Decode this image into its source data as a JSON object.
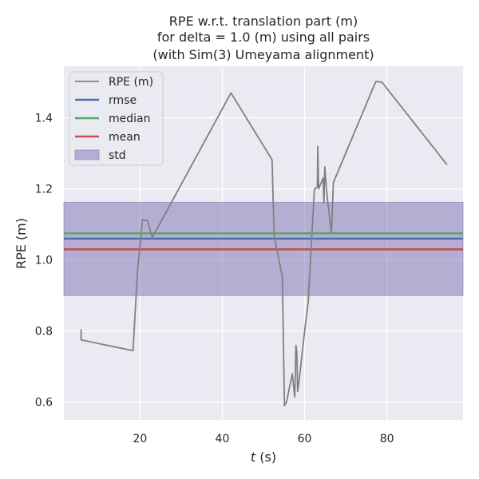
{
  "chart_data": {
    "type": "line",
    "title_lines": [
      "RPE w.r.t. translation part (m)",
      "for delta = 1.0 (m) using all pairs",
      "(with Sim(3) Umeyama alignment)"
    ],
    "xlabel_italic": "t",
    "xlabel_rest": " (s)",
    "ylabel": "RPE (m)",
    "xlim": [
      1.5,
      98.5
    ],
    "ylim": [
      0.55,
      1.545
    ],
    "xticks": [
      20,
      40,
      60,
      80
    ],
    "xtick_labels": [
      "20",
      "40",
      "60",
      "80"
    ],
    "yticks": [
      0.6,
      0.8,
      1.0,
      1.2,
      1.4
    ],
    "ytick_labels": [
      "0.6",
      "0.8",
      "1.0",
      "1.2",
      "1.4"
    ],
    "grid": true,
    "legend_position": "top-left",
    "series": [
      {
        "name": "RPE (m)",
        "color": "#808080",
        "x": [
          5.7,
          5.7,
          18.3,
          19.4,
          20.6,
          21.9,
          22.3,
          23.0,
          42.1,
          52.1,
          52.6,
          54.6,
          55.1,
          55.6,
          57.0,
          57.6,
          57.9,
          58.1,
          58.3,
          58.6,
          59.1,
          60.1,
          60.9,
          61.1,
          62.4,
          63.1,
          63.2,
          63.4,
          64.5,
          64.7,
          64.9,
          65.3,
          65.6,
          66.5,
          67.0,
          77.3,
          78.8,
          94.6
        ],
        "y": [
          0.805,
          0.775,
          0.745,
          0.97,
          1.113,
          1.11,
          1.09,
          1.063,
          1.47,
          1.282,
          1.068,
          0.952,
          0.59,
          0.6,
          0.68,
          0.615,
          0.76,
          0.74,
          0.63,
          0.655,
          0.705,
          0.81,
          0.885,
          0.93,
          1.2,
          1.205,
          1.32,
          1.2,
          1.23,
          1.16,
          1.262,
          1.2,
          1.165,
          1.075,
          1.218,
          1.502,
          1.5,
          1.268
        ]
      }
    ],
    "stats": [
      {
        "name": "rmse",
        "value": 1.06,
        "color": "#4c72b0"
      },
      {
        "name": "median",
        "value": 1.075,
        "color": "#55a868"
      },
      {
        "name": "mean",
        "value": 1.03,
        "color": "#c44e52"
      }
    ],
    "std_band": {
      "name": "std",
      "lower": 0.9,
      "upper": 1.162,
      "color": "#8172b2"
    },
    "colors": {
      "background": "#eaeaf2",
      "grid": "#ffffff",
      "text": "#262626"
    }
  }
}
